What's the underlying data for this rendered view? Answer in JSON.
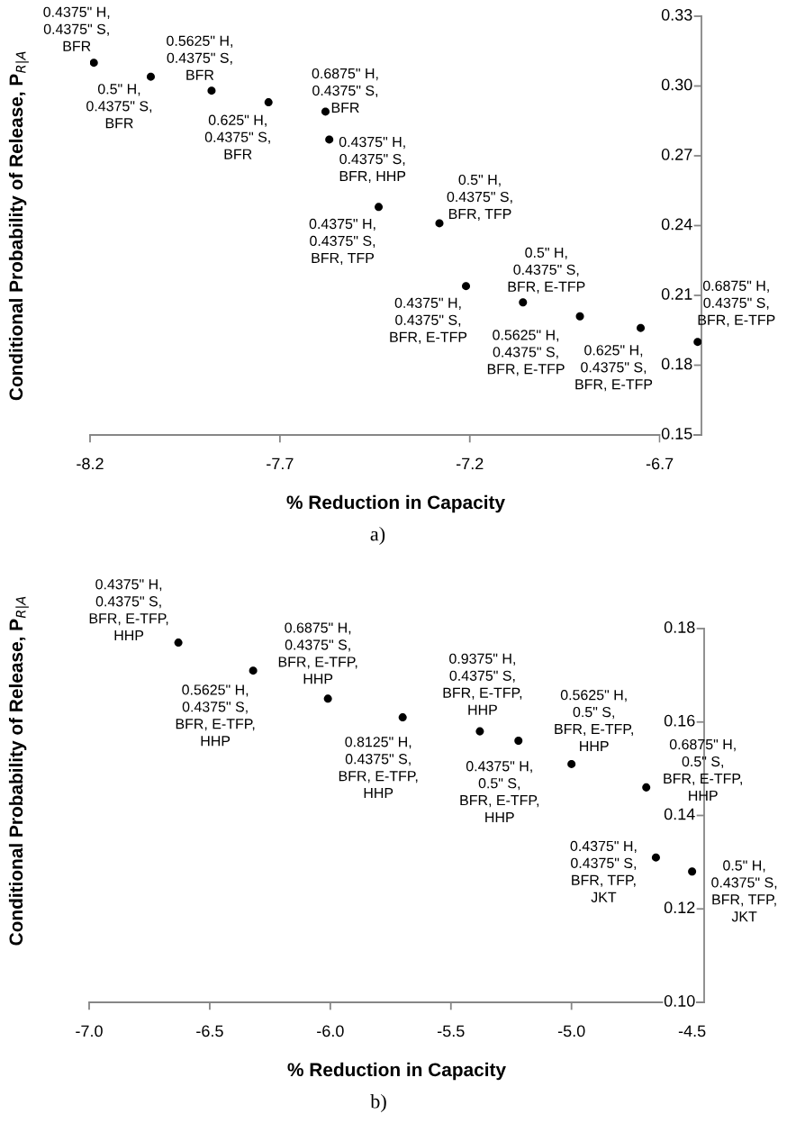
{
  "chart_data": [
    {
      "type": "scatter",
      "xlabel": "% Reduction in Capacity",
      "ylabel": "Conditional Probability of Release, P$_{R|A}$",
      "marker": "circle",
      "grid": false,
      "legend": false,
      "x": [
        -8.19,
        -8.04,
        -7.88,
        -7.73,
        -7.58,
        -7.57,
        -7.44,
        -7.28,
        -7.21,
        -7.06,
        -6.91,
        -6.75,
        -6.6
      ],
      "series": [
        {
          "color": "#000000",
          "values": [
            0.31,
            0.304,
            0.298,
            0.293,
            0.289,
            0.277,
            0.248,
            0.241,
            0.214,
            0.207,
            0.201,
            0.196,
            0.19
          ]
        }
      ],
      "xlim": [
        -8.2,
        -6.59
      ],
      "xticks": [
        -8.2,
        -7.7,
        -7.2,
        -6.7
      ],
      "ylim": [
        0.15,
        0.33
      ],
      "yticks": [
        0.15,
        0.18,
        0.21,
        0.24,
        0.27,
        {
          "value": 0.3,
          "label": "0.30"
        },
        0.33
      ],
      "annotations": [
        {
          "text": "0.4375\" H,\n0.4375\" S,\nBFR",
          "x": -8.19,
          "y": 0.31
        },
        {
          "text": "0.5\" H,\n0.4375\" S,\nBFR",
          "x": -8.04,
          "y": 0.304
        },
        {
          "text": "0.5625\" H,\n0.4375\" S,\nBFR",
          "x": -7.88,
          "y": 0.298
        },
        {
          "text": "0.625\" H,\n0.4375\" S,\nBFR",
          "x": -7.73,
          "y": 0.293
        },
        {
          "text": "0.6875\" H,\n0.4375\" S,\nBFR",
          "x": -7.58,
          "y": 0.289
        },
        {
          "text": "0.4375\" H,\n0.4375\" S,\nBFR, HHP",
          "x": -7.57,
          "y": 0.277
        },
        {
          "text": "0.4375\" H,\n0.4375\" S,\nBFR, TFP",
          "x": -7.44,
          "y": 0.248
        },
        {
          "text": "0.5\" H,\n0.4375\" S,\nBFR, TFP",
          "x": -7.28,
          "y": 0.241
        },
        {
          "text": "0.4375\" H,\n0.4375\" S,\nBFR, E-TFP",
          "x": -7.21,
          "y": 0.214
        },
        {
          "text": "0.5\" H,\n0.4375\" S,\nBFR, E-TFP",
          "x": -7.06,
          "y": 0.207
        },
        {
          "text": "0.5625\" H,\n0.4375\" S,\nBFR, E-TFP",
          "x": -6.91,
          "y": 0.201
        },
        {
          "text": "0.625\" H,\n0.4375\" S,\nBFR, E-TFP",
          "x": -6.75,
          "y": 0.196
        },
        {
          "text": "0.6875\" H,\n0.4375\" S,\nBFR, E-TFP",
          "x": -6.6,
          "y": 0.19
        },
        "a)"
      ]
    },
    {
      "type": "scatter",
      "xlabel": "% Reduction in Capacity",
      "ylabel": "Conditional Probability of Release, P$_{R|A}$",
      "marker": "circle",
      "grid": false,
      "legend": false,
      "x": [
        -6.63,
        -6.32,
        -6.01,
        -5.7,
        -5.38,
        -5.22,
        -5.0,
        -4.69,
        -4.65,
        -4.5
      ],
      "series": [
        {
          "color": "#000000",
          "values": [
            0.177,
            0.171,
            0.165,
            0.161,
            0.158,
            0.156,
            0.151,
            0.146,
            0.131,
            0.128
          ]
        }
      ],
      "xlim": [
        -7.0,
        -4.45
      ],
      "xticks": [
        {
          "value": -7.0,
          "label": "-7.0"
        },
        -6.5,
        {
          "value": -6.0,
          "label": "-6.0"
        },
        -5.5,
        {
          "value": -5.0,
          "label": "-5.0"
        },
        -4.5
      ],
      "ylim": [
        0.1,
        0.18
      ],
      "yticks": [
        {
          "value": 0.1,
          "label": "0.10"
        },
        0.12,
        0.14,
        0.16,
        0.18
      ],
      "annotations": [
        {
          "text": "0.4375\" H,\n0.4375\" S,\nBFR, E-TFP,\nHHP",
          "x": -6.63,
          "y": 0.177
        },
        {
          "text": "0.5625\" H,\n0.4375\" S,\nBFR, E-TFP,\nHHP",
          "x": -6.32,
          "y": 0.171
        },
        {
          "text": "0.6875\" H,\n0.4375\" S,\nBFR, E-TFP,\nHHP",
          "x": -6.01,
          "y": 0.165
        },
        {
          "text": "0.8125\" H,\n0.4375\" S,\nBFR, E-TFP,\nHHP",
          "x": -5.7,
          "y": 0.161
        },
        {
          "text": "0.9375\" H,\n0.4375\" S,\nBFR, E-TFP,\nHHP",
          "x": -5.38,
          "y": 0.158
        },
        {
          "text": "0.4375\" H,\n0.5\" S,\nBFR, E-TFP,\nHHP",
          "x": -5.22,
          "y": 0.156
        },
        {
          "text": "0.5625\" H,\n0.5\" S,\nBFR, E-TFP,\nHHP",
          "x": -5.0,
          "y": 0.151
        },
        {
          "text": "0.6875\" H,\n0.5\" S,\nBFR, E-TFP,\nHHP",
          "x": -4.69,
          "y": 0.146
        },
        {
          "text": "0.4375\" H,\n0.4375\" S,\nBFR, TFP,\nJKT",
          "x": -4.65,
          "y": 0.131
        },
        {
          "text": "0.5\" H,\n0.4375\" S,\nBFR, TFP,\nJKT",
          "x": -4.5,
          "y": 0.128
        },
        "b)"
      ]
    }
  ]
}
